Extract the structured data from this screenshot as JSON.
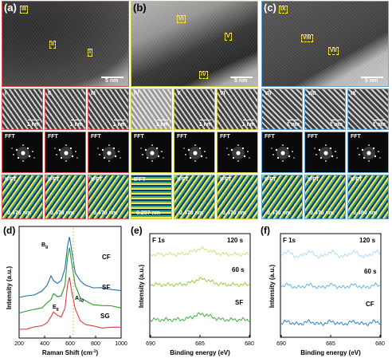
{
  "panels": {
    "a": {
      "letter": "(a)",
      "scale": "5 nm",
      "rois": [
        "III",
        "II",
        "I"
      ],
      "hr_tiles": [
        {
          "roman": "I",
          "scale": "1 nm"
        },
        {
          "roman": "II",
          "scale": "1 nm"
        },
        {
          "roman": "III",
          "scale": "1 nm"
        }
      ],
      "fft_label": "FFT",
      "ifft_label": "IFFT",
      "d_spacings": [
        "0.476 nm",
        "0.478 nm",
        "0.476 nm"
      ]
    },
    "b": {
      "letter": "(b)",
      "scale": "5 nm",
      "rois": [
        "VI",
        "V",
        "IV"
      ],
      "hr_tiles": [
        {
          "roman": "IV",
          "scale": "1 nm"
        },
        {
          "roman": "V",
          "scale": "1 nm"
        },
        {
          "roman": "VI",
          "scale": "1 nm"
        }
      ],
      "fft_label": "FFT",
      "ifft_label": "IFFT",
      "d_spacings": [
        "0.207 nm",
        "0.478 nm",
        "0.476 nm"
      ]
    },
    "c": {
      "letter": "(c)",
      "scale": "5 nm",
      "rois": [
        "IX",
        "VIII",
        "VII"
      ],
      "hr_tiles": [
        {
          "roman": "VII",
          "scale": "1 nm"
        },
        {
          "roman": "VIII",
          "scale": "1 nm"
        },
        {
          "roman": "IX",
          "scale": "1 nm"
        }
      ],
      "fft_label": "FFT",
      "ifft_label": "IFFT",
      "d_spacings": [
        "0.476 nm",
        "0.476 nm",
        "0.484 nm"
      ]
    }
  },
  "colors": {
    "a": "#e05050",
    "b": "#c8c83c",
    "c": "#5aa8dc"
  },
  "chart_data": [
    {
      "panel": "(d)",
      "type": "line",
      "xlabel": "Raman Shift (cm",
      "xlabel_sup": "-1",
      "xlabel_end": ")",
      "ylabel": "Intensity (a.u.)",
      "xlim": [
        200,
        1000
      ],
      "xticks": [
        "200",
        "400",
        "600",
        "800",
        "1000"
      ],
      "annotations": [
        "B",
        "g",
        "E",
        "g",
        "A",
        "1g"
      ],
      "series": [
        {
          "name": "CF",
          "color": "#1a6fb0",
          "x": [
            200,
            260,
            320,
            380,
            420,
            450,
            470,
            500,
            530,
            560,
            580,
            595,
            610,
            640,
            680,
            720,
            780,
            850,
            920,
            1000
          ],
          "y": [
            0.3,
            0.31,
            0.33,
            0.36,
            0.42,
            0.52,
            0.46,
            0.44,
            0.47,
            0.58,
            0.82,
            0.9,
            0.78,
            0.55,
            0.46,
            0.42,
            0.4,
            0.39,
            0.38,
            0.37
          ]
        },
        {
          "name": "SF",
          "color": "#2a9a2a",
          "x": [
            200,
            260,
            320,
            380,
            420,
            450,
            470,
            500,
            530,
            560,
            580,
            595,
            610,
            640,
            680,
            720,
            780,
            850,
            920,
            1000
          ],
          "y": [
            0.15,
            0.16,
            0.18,
            0.2,
            0.24,
            0.28,
            0.34,
            0.3,
            0.32,
            0.42,
            0.7,
            0.8,
            0.66,
            0.42,
            0.3,
            0.26,
            0.23,
            0.22,
            0.21,
            0.2
          ]
        },
        {
          "name": "SG",
          "color": "#d84040",
          "x": [
            200,
            260,
            320,
            380,
            420,
            450,
            470,
            500,
            530,
            560,
            580,
            595,
            610,
            640,
            680,
            720,
            780,
            850,
            920,
            1000
          ],
          "y": [
            -0.02,
            -0.01,
            0.0,
            0.02,
            0.05,
            0.1,
            0.16,
            0.12,
            0.1,
            0.2,
            0.42,
            0.5,
            0.38,
            0.18,
            0.07,
            0.03,
            0.01,
            0.0,
            0.0,
            0.0
          ]
        }
      ],
      "labels": [
        "CF",
        "SF",
        "SG"
      ]
    },
    {
      "panel": "(e)",
      "type": "line",
      "title": "F 1s",
      "xlabel": "Binding energy (eV)",
      "ylabel": "Intensity (a.u.)",
      "xlim": [
        690,
        680
      ],
      "xticks": [
        "690",
        "685",
        "680"
      ],
      "series": [
        {
          "name": "120 s",
          "color": "#c8e07a"
        },
        {
          "name": "60 s",
          "color": "#8ccc3a"
        },
        {
          "name": "SF",
          "color": "#32a832"
        }
      ],
      "labels": [
        "120 s",
        "60 s",
        "SF"
      ],
      "peak_x": 685
    },
    {
      "panel": "(f)",
      "type": "line",
      "title": "F 1s",
      "xlabel": "Binding energy (eV)",
      "ylabel": "Intensity (a.u.)",
      "xlim": [
        690,
        680
      ],
      "xticks": [
        "690",
        "685",
        "680"
      ],
      "series": [
        {
          "name": "120 s",
          "color": "#a8d8f4"
        },
        {
          "name": "60 s",
          "color": "#56aee4"
        },
        {
          "name": "CF",
          "color": "#1678c4"
        }
      ],
      "labels": [
        "120 s",
        "60 s",
        "CF"
      ]
    }
  ]
}
